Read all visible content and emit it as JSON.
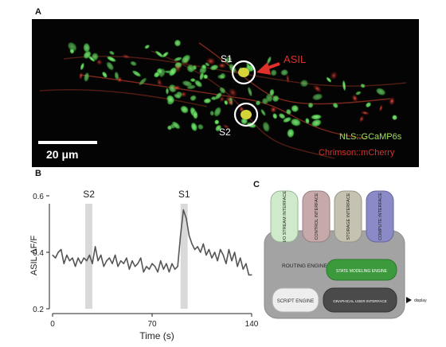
{
  "panel_a": {
    "letter": "A",
    "labels": {
      "s1": "S1",
      "s2": "S2",
      "asil": "ASIL"
    },
    "scale_bar_label": "20 μm",
    "legend": {
      "green": "NLS::GCaMP6s",
      "red": "Chrimson::mCherry"
    },
    "colors": {
      "green_channel": "#5fcf5a",
      "red_channel": "#d8382e",
      "label_green": "#9fe05a",
      "label_red": "#e0302a",
      "arrow": "#e0302a"
    }
  },
  "panel_b": {
    "letter": "B"
  },
  "panel_c": {
    "letter": "C",
    "interfaces": [
      {
        "label": "I/O STREAM INTERFACE",
        "color": "#cfe9cb"
      },
      {
        "label": "CONTROL INTERFACE",
        "color": "#c7a9a9"
      },
      {
        "label": "STORAGE INTERFACE",
        "color": "#c6c2b2"
      },
      {
        "label": "COMPUTE INTERFACE",
        "color": "#8a8bc6"
      }
    ],
    "routing_engine": "ROUTING ENGINE",
    "state_modeling_engine": "STATE MODELING ENGINE",
    "script_engine": "SCRIPT ENGINE",
    "graphical_user_interface": "GRAPHICAL USER INTERFACE",
    "display": "display",
    "colors": {
      "body": "#a3a3a3",
      "state_engine": "#3c9a3c",
      "gui": "#4a4a4a",
      "script": "#eeeeee"
    }
  },
  "chart_data": {
    "type": "line",
    "xlabel": "Time (s)",
    "ylabel": "ASIL  ΔF/F",
    "xlim": [
      0,
      140
    ],
    "ylim": [
      0.2,
      0.6
    ],
    "xticks": [
      0,
      70,
      140
    ],
    "yticks": [
      0.2,
      0.4,
      0.6
    ],
    "stim_bands": [
      {
        "label": "S2",
        "x": [
          23,
          28
        ]
      },
      {
        "label": "S1",
        "x": [
          90,
          95
        ]
      }
    ],
    "series": [
      {
        "x": [
          0,
          2,
          4,
          6,
          8,
          10,
          12,
          14,
          16,
          18,
          20,
          22,
          24,
          26,
          28,
          30,
          32,
          34,
          36,
          38,
          40,
          42,
          44,
          46,
          48,
          50,
          52,
          54,
          56,
          58,
          60,
          62,
          64,
          66,
          68,
          70,
          72,
          74,
          76,
          78,
          80,
          82,
          84,
          86,
          88,
          90,
          92,
          94,
          96,
          98,
          100,
          102,
          104,
          106,
          108,
          110,
          112,
          114,
          116,
          118,
          120,
          122,
          124,
          126,
          128,
          130,
          132,
          134,
          136,
          138,
          140
        ],
        "values": [
          0.39,
          0.38,
          0.4,
          0.41,
          0.36,
          0.39,
          0.37,
          0.38,
          0.35,
          0.38,
          0.36,
          0.38,
          0.37,
          0.39,
          0.36,
          0.42,
          0.37,
          0.39,
          0.35,
          0.37,
          0.38,
          0.36,
          0.39,
          0.35,
          0.37,
          0.36,
          0.38,
          0.34,
          0.37,
          0.35,
          0.36,
          0.38,
          0.33,
          0.35,
          0.34,
          0.36,
          0.35,
          0.33,
          0.37,
          0.34,
          0.36,
          0.33,
          0.36,
          0.34,
          0.35,
          0.46,
          0.55,
          0.52,
          0.46,
          0.43,
          0.41,
          0.42,
          0.4,
          0.43,
          0.39,
          0.41,
          0.38,
          0.4,
          0.37,
          0.41,
          0.39,
          0.36,
          0.41,
          0.37,
          0.4,
          0.35,
          0.38,
          0.34,
          0.36,
          0.32,
          0.32
        ]
      }
    ],
    "grid": false,
    "line_color": "#555555",
    "band_color": "#d9d9d9"
  }
}
